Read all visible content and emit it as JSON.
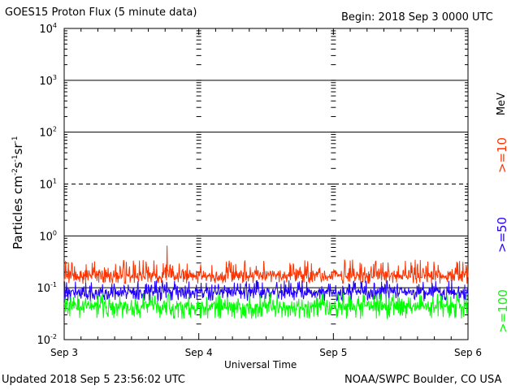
{
  "header": {
    "title": "GOES15 Proton Flux (5 minute data)",
    "begin": "Begin: 2018 Sep 3 0000 UTC"
  },
  "footer": {
    "updated": "Updated 2018 Sep  5 23:56:02 UTC",
    "credit": "NOAA/SWPC Boulder, CO USA"
  },
  "legend": {
    "unit": "MeV",
    "labels": [
      ">=10",
      ">=50",
      ">=100"
    ],
    "colors": [
      "#ff3300",
      "#2200ff",
      "#00ff00"
    ]
  },
  "chart_data": {
    "type": "line",
    "title": "GOES15 Proton Flux (5 minute data)",
    "xlabel": "Universal Time",
    "ylabel_base": "Particles cm",
    "ylabel_sup": [
      "-2",
      "-1",
      "-1"
    ],
    "ylabel_parts": [
      "s",
      "sr"
    ],
    "y_scale": "log",
    "ylim": [
      0.01,
      10000
    ],
    "y_tick_base": "10",
    "y_tick_exponents": [
      "-2",
      "-1",
      "0",
      "1",
      "2",
      "3",
      "4"
    ],
    "x_ticks": [
      "Sep 3",
      "Sep 4",
      "Sep 5",
      "Sep 6"
    ],
    "xlim_days": [
      0,
      3
    ],
    "threshold_line": 10,
    "grid": true,
    "series": [
      {
        "name": ">=10",
        "color": "#ff3300",
        "typical": 0.18,
        "low": 0.12,
        "high": 0.35,
        "peak": 0.65
      },
      {
        "name": ">=50",
        "color": "#2200ff",
        "typical": 0.085,
        "low": 0.055,
        "high": 0.14
      },
      {
        "name": ">=100",
        "color": "#00ff00",
        "typical": 0.045,
        "low": 0.025,
        "high": 0.08
      }
    ]
  }
}
